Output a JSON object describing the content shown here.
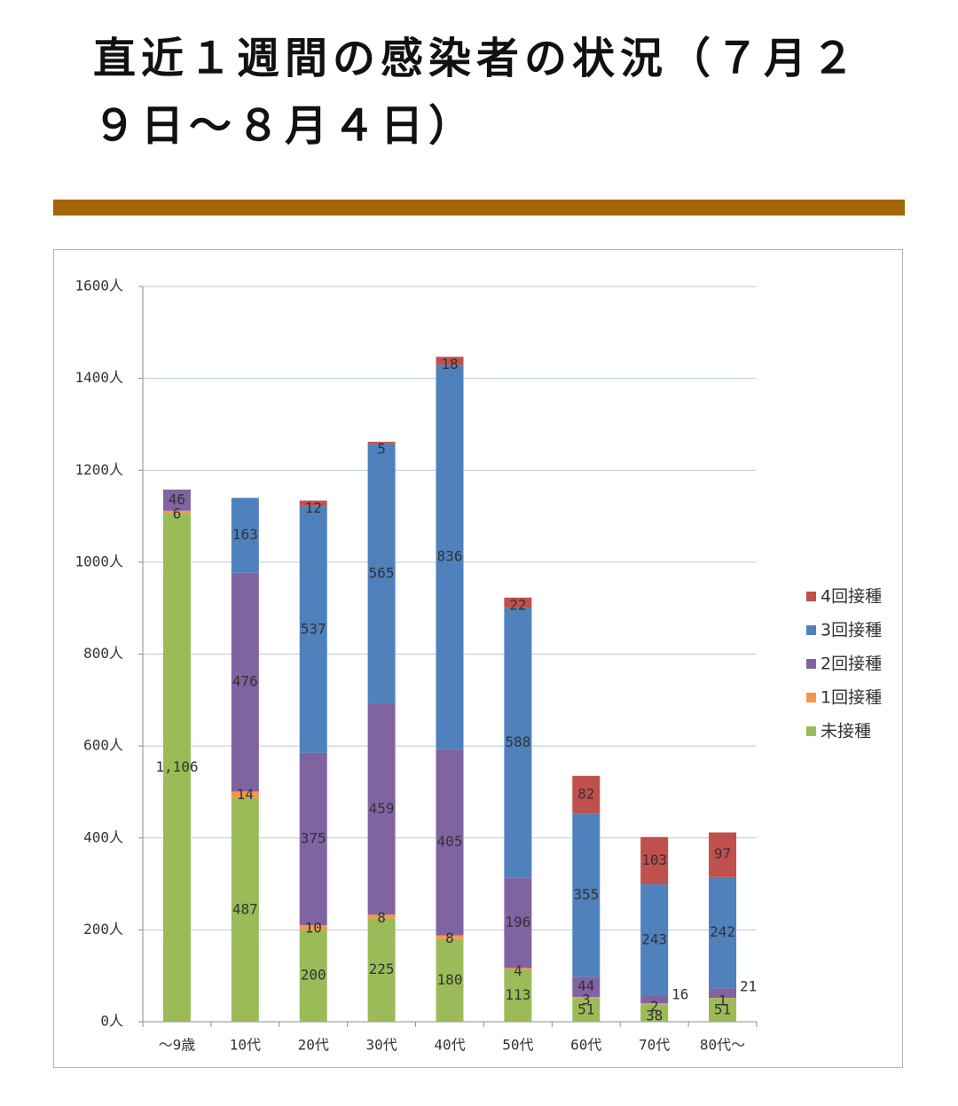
{
  "title": "直近１週間の感染者の状況（７月２９日～８月４日）",
  "colors": {
    "rule": "#A5660A",
    "grid": "#B9C9E0",
    "axis": "#8C8C8C",
    "text": "#333333"
  },
  "chart_data": {
    "type": "bar",
    "stacked": true,
    "title": "",
    "xlabel": "",
    "ylabel": "",
    "ylim": [
      0,
      1600
    ],
    "yticks": [
      0,
      200,
      400,
      600,
      800,
      1000,
      1200,
      1400,
      1600
    ],
    "ytick_labels": [
      "0人",
      "200人",
      "400人",
      "600人",
      "800人",
      "1000人",
      "1200人",
      "1400人",
      "1600人"
    ],
    "grid": true,
    "legend_position": "right",
    "categories": [
      "～9歳",
      "10代",
      "20代",
      "30代",
      "40代",
      "50代",
      "60代",
      "70代",
      "80代～"
    ],
    "series": [
      {
        "name": "未接種",
        "color": "#9BBB59",
        "values": [
          1106,
          487,
          200,
          225,
          180,
          113,
          51,
          38,
          51
        ],
        "labels": [
          "1,106",
          "487",
          "200",
          "225",
          "180",
          "113",
          "51",
          "38",
          "51"
        ]
      },
      {
        "name": "1回接種",
        "color": "#F79646",
        "values": [
          6,
          14,
          10,
          8,
          8,
          4,
          3,
          2,
          1
        ],
        "labels": [
          "6",
          "14",
          "10",
          "8",
          "8",
          "4",
          "3",
          "2",
          "1"
        ]
      },
      {
        "name": "2回接種",
        "color": "#8064A2",
        "values": [
          46,
          476,
          375,
          459,
          405,
          196,
          44,
          16,
          21
        ],
        "labels": [
          "46",
          "476",
          "375",
          "459",
          "405",
          "196",
          "44",
          "16",
          "21"
        ]
      },
      {
        "name": "3回接種",
        "color": "#4F81BD",
        "values": [
          0,
          163,
          537,
          565,
          836,
          588,
          355,
          243,
          242
        ],
        "labels": [
          "",
          "163",
          "537",
          "565",
          "836",
          "588",
          "355",
          "243",
          "242"
        ]
      },
      {
        "name": "4回接種",
        "color": "#C0504D",
        "values": [
          0,
          0,
          12,
          5,
          18,
          22,
          82,
          103,
          97
        ],
        "labels": [
          "",
          "",
          "12",
          "5",
          "18",
          "22",
          "82",
          "103",
          "97"
        ]
      }
    ],
    "legend_order": [
      "4回接種",
      "3回接種",
      "2回接種",
      "1回接種",
      "未接種"
    ]
  }
}
